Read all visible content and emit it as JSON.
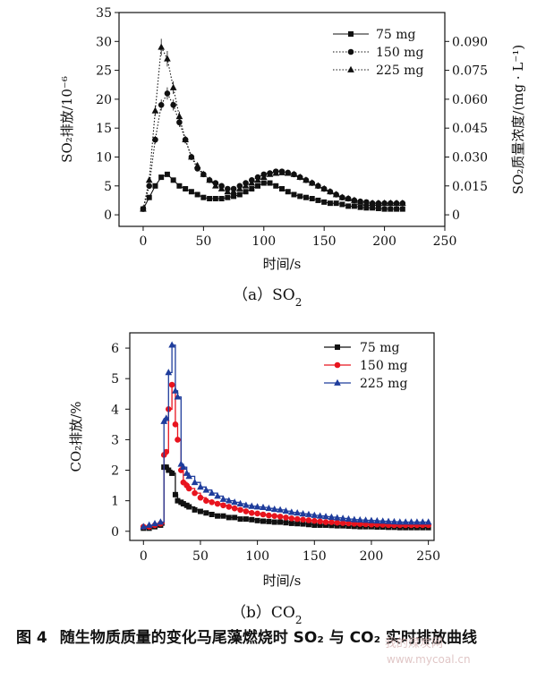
{
  "chart_data": [
    {
      "type": "line",
      "panel_label": "（a）SO",
      "panel_label_sub": "2",
      "xlabel": "时间/s",
      "ylabel_left": "SO₂排放/10⁻⁶",
      "ylabel_right": "SO₂质量浓度/(mg · L⁻¹)",
      "xlim": [
        -20,
        250
      ],
      "ylim": [
        -2,
        35
      ],
      "x_ticks": [
        "0",
        "50",
        "100",
        "150",
        "200",
        "250"
      ],
      "y_ticks": [
        "0",
        "5",
        "10",
        "15",
        "20",
        "25",
        "30",
        "35"
      ],
      "y2_ticks": [
        "0",
        "0.015",
        "0.030",
        "0.045",
        "0.060",
        "0.075",
        "0.090"
      ],
      "legend_position": "top-right",
      "series": [
        {
          "name": "75 mg",
          "marker": "square",
          "line": "solid",
          "x": [
            0,
            5,
            10,
            15,
            20,
            25,
            30,
            35,
            40,
            45,
            50,
            55,
            60,
            65,
            70,
            75,
            80,
            85,
            90,
            95,
            100,
            105,
            110,
            115,
            120,
            125,
            130,
            135,
            140,
            145,
            150,
            155,
            160,
            165,
            170,
            175,
            180,
            185,
            190,
            195,
            200,
            205,
            210,
            215
          ],
          "y": [
            1.0,
            3.0,
            5.0,
            6.5,
            7.0,
            6.0,
            5.0,
            4.5,
            4.0,
            3.5,
            3.0,
            2.8,
            2.8,
            2.8,
            3.0,
            3.2,
            3.5,
            4.0,
            4.5,
            5.0,
            5.5,
            5.5,
            5.0,
            4.5,
            4.0,
            3.5,
            3.2,
            3.0,
            2.8,
            2.5,
            2.2,
            2.0,
            2.0,
            1.8,
            1.5,
            1.5,
            1.3,
            1.2,
            1.2,
            1.1,
            1.0,
            1.0,
            1.0,
            1.0
          ]
        },
        {
          "name": "150 mg",
          "marker": "circle",
          "line": "dotted",
          "x": [
            0,
            5,
            10,
            15,
            20,
            25,
            30,
            35,
            40,
            45,
            50,
            55,
            60,
            65,
            70,
            75,
            80,
            85,
            90,
            95,
            100,
            105,
            110,
            115,
            120,
            125,
            130,
            135,
            140,
            145,
            150,
            155,
            160,
            165,
            170,
            175,
            180,
            185,
            190,
            195,
            200,
            205,
            210,
            215
          ],
          "y": [
            1.0,
            5.0,
            13.0,
            19.0,
            21.0,
            19.0,
            16.0,
            13.0,
            10.0,
            8.0,
            7.0,
            6.0,
            5.5,
            5.0,
            4.5,
            4.5,
            5.0,
            5.5,
            6.0,
            6.5,
            7.0,
            7.2,
            7.5,
            7.5,
            7.3,
            7.0,
            6.5,
            6.0,
            5.5,
            5.0,
            4.5,
            4.0,
            3.5,
            3.0,
            2.8,
            2.5,
            2.3,
            2.2,
            2.0,
            2.0,
            2.0,
            2.0,
            2.0,
            2.0
          ]
        },
        {
          "name": "225 mg",
          "marker": "triangle",
          "line": "dotted",
          "x": [
            0,
            5,
            10,
            15,
            20,
            25,
            30,
            35,
            40,
            45,
            50,
            55,
            60,
            65,
            70,
            75,
            80,
            85,
            90,
            95,
            100,
            105,
            110,
            115,
            120,
            125,
            130,
            135,
            140,
            145,
            150,
            155,
            160,
            165,
            170,
            175,
            180,
            185,
            190,
            195,
            200,
            205,
            210,
            215
          ],
          "y": [
            1.0,
            6.0,
            18.0,
            29.0,
            27.0,
            22.0,
            17.0,
            13.0,
            10.0,
            8.5,
            7.0,
            6.0,
            5.0,
            4.5,
            4.0,
            4.0,
            4.5,
            5.0,
            5.5,
            6.0,
            6.5,
            7.0,
            7.2,
            7.3,
            7.2,
            7.0,
            6.5,
            6.0,
            5.5,
            5.0,
            4.5,
            4.0,
            3.5,
            3.0,
            2.8,
            2.5,
            2.2,
            2.0,
            2.0,
            2.0,
            2.0,
            2.0,
            2.0,
            2.0
          ]
        }
      ]
    },
    {
      "type": "line",
      "panel_label": "（b）CO",
      "panel_label_sub": "2",
      "xlabel": "时间/s",
      "ylabel": "CO₂排放/%",
      "xlim": [
        -12,
        255
      ],
      "ylim": [
        -0.3,
        6.5
      ],
      "x_ticks": [
        "0",
        "50",
        "100",
        "150",
        "200",
        "250"
      ],
      "y_ticks": [
        "0",
        "1",
        "2",
        "3",
        "4",
        "5",
        "6"
      ],
      "legend_position": "top-right",
      "series": [
        {
          "name": "75 mg",
          "marker": "square",
          "color": "#111111",
          "x": [
            0,
            5,
            10,
            15,
            18,
            20,
            22,
            25,
            28,
            30,
            33,
            35,
            38,
            40,
            45,
            50,
            55,
            60,
            65,
            70,
            75,
            80,
            85,
            90,
            95,
            100,
            105,
            110,
            115,
            120,
            125,
            130,
            135,
            140,
            145,
            150,
            155,
            160,
            165,
            170,
            175,
            180,
            185,
            190,
            195,
            200,
            205,
            210,
            215,
            220,
            225,
            230,
            235,
            240,
            245,
            250
          ],
          "y": [
            0.1,
            0.1,
            0.15,
            0.2,
            2.1,
            2.1,
            2.0,
            1.9,
            1.2,
            1.0,
            0.95,
            0.9,
            0.85,
            0.8,
            0.7,
            0.65,
            0.6,
            0.55,
            0.5,
            0.5,
            0.45,
            0.45,
            0.4,
            0.4,
            0.38,
            0.35,
            0.33,
            0.32,
            0.3,
            0.3,
            0.28,
            0.26,
            0.25,
            0.24,
            0.22,
            0.2,
            0.2,
            0.2,
            0.19,
            0.18,
            0.18,
            0.17,
            0.16,
            0.15,
            0.15,
            0.15,
            0.14,
            0.14,
            0.13,
            0.13,
            0.12,
            0.12,
            0.12,
            0.12,
            0.12,
            0.12
          ]
        },
        {
          "name": "150 mg",
          "marker": "circle",
          "color": "#e8141e",
          "x": [
            0,
            5,
            10,
            15,
            18,
            20,
            22,
            25,
            28,
            30,
            33,
            35,
            38,
            40,
            45,
            50,
            55,
            60,
            65,
            70,
            75,
            80,
            85,
            90,
            95,
            100,
            105,
            110,
            115,
            120,
            125,
            130,
            135,
            140,
            145,
            150,
            155,
            160,
            165,
            170,
            175,
            180,
            185,
            190,
            195,
            200,
            205,
            210,
            215,
            220,
            225,
            230,
            235,
            240,
            245,
            250
          ],
          "y": [
            0.15,
            0.15,
            0.2,
            0.25,
            2.5,
            2.6,
            4.0,
            4.8,
            3.5,
            3.0,
            2.0,
            1.6,
            1.5,
            1.4,
            1.25,
            1.1,
            1.0,
            0.95,
            0.9,
            0.85,
            0.8,
            0.75,
            0.7,
            0.65,
            0.6,
            0.58,
            0.55,
            0.52,
            0.5,
            0.48,
            0.45,
            0.42,
            0.4,
            0.38,
            0.36,
            0.34,
            0.32,
            0.3,
            0.3,
            0.28,
            0.27,
            0.26,
            0.25,
            0.24,
            0.23,
            0.22,
            0.22,
            0.21,
            0.2,
            0.2,
            0.2,
            0.2,
            0.2,
            0.2,
            0.2,
            0.2
          ]
        },
        {
          "name": "225 mg",
          "marker": "triangle",
          "color": "#1f3d9c",
          "x": [
            0,
            5,
            10,
            15,
            18,
            20,
            22,
            25,
            28,
            30,
            33,
            35,
            38,
            40,
            45,
            50,
            55,
            60,
            65,
            70,
            75,
            80,
            85,
            90,
            95,
            100,
            105,
            110,
            115,
            120,
            125,
            130,
            135,
            140,
            145,
            150,
            155,
            160,
            165,
            170,
            175,
            180,
            185,
            190,
            195,
            200,
            205,
            210,
            215,
            220,
            225,
            230,
            235,
            240,
            245,
            250
          ],
          "y": [
            0.15,
            0.2,
            0.25,
            0.3,
            3.6,
            3.7,
            5.2,
            6.1,
            4.6,
            4.4,
            2.2,
            2.1,
            1.9,
            1.8,
            1.6,
            1.45,
            1.35,
            1.25,
            1.15,
            1.05,
            1.0,
            0.95,
            0.9,
            0.85,
            0.82,
            0.8,
            0.78,
            0.75,
            0.72,
            0.7,
            0.66,
            0.62,
            0.6,
            0.57,
            0.55,
            0.52,
            0.5,
            0.48,
            0.46,
            0.44,
            0.42,
            0.4,
            0.38,
            0.37,
            0.36,
            0.35,
            0.34,
            0.33,
            0.32,
            0.31,
            0.3,
            0.3,
            0.3,
            0.3,
            0.3,
            0.3
          ]
        }
      ]
    }
  ],
  "caption": {
    "figure_number": "图 4",
    "text": "随生物质质量的变化马尾藻燃烧时 SO₂ 与 CO₂ 实时排放曲线"
  },
  "watermark": {
    "text": "我的煤炭网",
    "url": "www.mycoal.cn"
  }
}
